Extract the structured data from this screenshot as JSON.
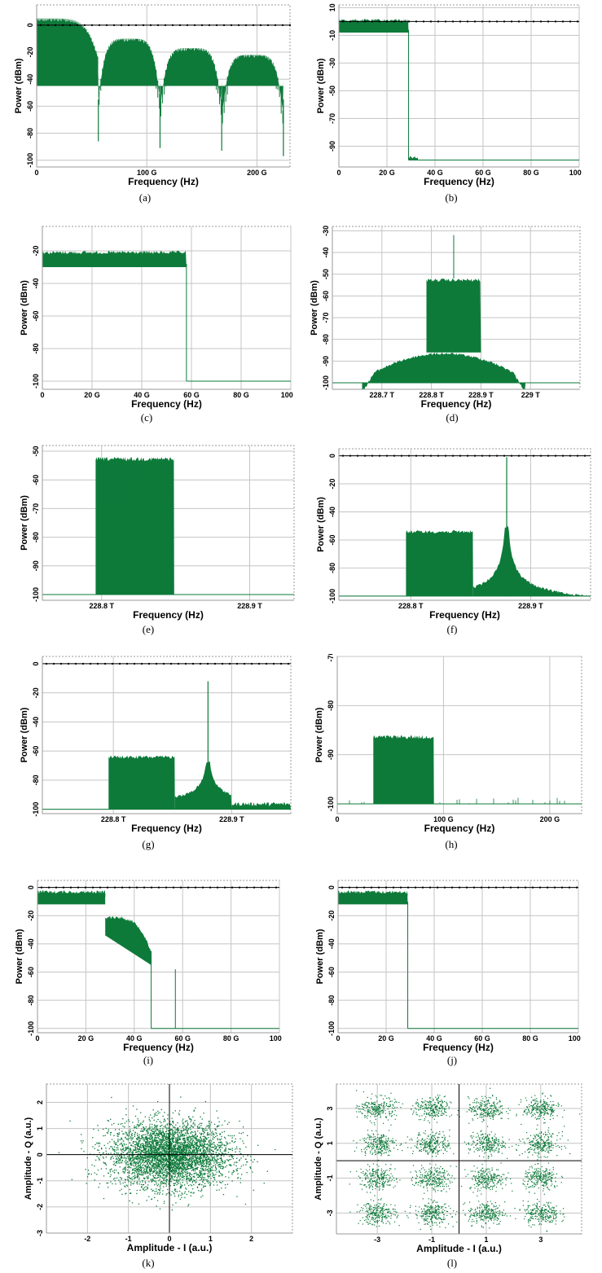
{
  "colors": {
    "trace": "#0e7a3a",
    "grid": "#c4c4c4",
    "axis": "#000000",
    "frame": "#9a9a9a"
  },
  "chart_data": [
    {
      "id": "a",
      "caption": "(a)",
      "type": "line",
      "shape": "nyquist_lobes",
      "xlabel": "Frequency (Hz)",
      "ylabel": "Power (dBm)",
      "xlim": [
        0,
        230
      ],
      "ylim": [
        -105,
        15
      ],
      "x_ticks": [
        {
          "v": 0,
          "t": "0"
        },
        {
          "v": 100,
          "t": "100 G"
        },
        {
          "v": 200,
          "t": "200 G"
        }
      ],
      "y_ticks": [
        {
          "v": 0,
          "t": "0"
        },
        {
          "v": -20,
          "t": "-20"
        },
        {
          "v": -40,
          "t": "-40"
        },
        {
          "v": -60,
          "t": "-60"
        },
        {
          "v": -80,
          "t": "-80"
        },
        {
          "v": -100,
          "t": "-100"
        }
      ],
      "reference_level": 0,
      "nulls_x": [
        56,
        112,
        168,
        224
      ],
      "null_depths": [
        -86,
        -91,
        -93,
        -97
      ],
      "lobe_peaks": [
        5,
        -10,
        -17,
        -22
      ]
    },
    {
      "id": "b",
      "caption": "(b)",
      "type": "line",
      "shape": "lowpass",
      "xlabel": "Frequency (Hz)",
      "ylabel": "Power (dBm)",
      "xlim": [
        0,
        100
      ],
      "ylim": [
        -105,
        12
      ],
      "x_ticks": [
        {
          "v": 0,
          "t": "0"
        },
        {
          "v": 20,
          "t": "20 G"
        },
        {
          "v": 40,
          "t": "40 G"
        },
        {
          "v": 60,
          "t": "60 G"
        },
        {
          "v": 80,
          "t": "80 G"
        },
        {
          "v": 100,
          "t": "100 G"
        }
      ],
      "y_ticks": [
        {
          "v": 10,
          "t": "10"
        },
        {
          "v": -10,
          "t": "-10"
        },
        {
          "v": -30,
          "t": "-30"
        },
        {
          "v": -50,
          "t": "-50"
        },
        {
          "v": -70,
          "t": "-70"
        },
        {
          "v": -90,
          "t": "-90"
        }
      ],
      "reference_level": 0,
      "cutoff": 29,
      "passband_level": 2,
      "floor_level": -100,
      "noise_tail": [
        29,
        33,
        -97
      ]
    },
    {
      "id": "c",
      "caption": "(c)",
      "type": "line",
      "shape": "lowpass",
      "xlabel": "Frequency (Hz)",
      "ylabel": "Power (dBm)",
      "xlim": [
        0,
        100
      ],
      "ylim": [
        -105,
        -5
      ],
      "x_ticks": [
        {
          "v": 0,
          "t": "0"
        },
        {
          "v": 20,
          "t": "20 G"
        },
        {
          "v": 40,
          "t": "40 G"
        },
        {
          "v": 60,
          "t": "60 G"
        },
        {
          "v": 80,
          "t": "80 G"
        },
        {
          "v": 100,
          "t": "100 G"
        }
      ],
      "y_ticks": [
        {
          "v": -20,
          "t": "-20"
        },
        {
          "v": -40,
          "t": "-40"
        },
        {
          "v": -60,
          "t": "-60"
        },
        {
          "v": -80,
          "t": "-80"
        },
        {
          "v": -100,
          "t": "-100"
        }
      ],
      "cutoff": 58,
      "passband_level": -20,
      "floor_level": -100
    },
    {
      "id": "d",
      "caption": "(d)",
      "type": "line",
      "shape": "dual_band",
      "xlabel": "Frequency (Hz)",
      "ylabel": "Power (dBm)",
      "xlim": [
        228.6,
        229.1
      ],
      "ylim": [
        -103,
        -28
      ],
      "x_ticks": [
        {
          "v": 228.7,
          "t": "228.7 T"
        },
        {
          "v": 228.8,
          "t": "228.8 T"
        },
        {
          "v": 228.9,
          "t": "228.9 T"
        },
        {
          "v": 229.0,
          "t": "229 T"
        }
      ],
      "y_ticks": [
        {
          "v": -30,
          "t": "-30"
        },
        {
          "v": -40,
          "t": "-40"
        },
        {
          "v": -50,
          "t": "-50"
        },
        {
          "v": -60,
          "t": "-60"
        },
        {
          "v": -70,
          "t": "-70"
        },
        {
          "v": -80,
          "t": "-80"
        },
        {
          "v": -90,
          "t": "-90"
        },
        {
          "v": -100,
          "t": "-100"
        }
      ],
      "floor_level": -100,
      "band": [
        228.79,
        228.9
      ],
      "band_top": -52,
      "pedestal": [
        228.66,
        228.99
      ],
      "pedestal_top": -86,
      "spike_x": 228.845,
      "spike_top": -32
    },
    {
      "id": "e",
      "caption": "(e)",
      "type": "line",
      "shape": "band",
      "xlabel": "Frequency (Hz)",
      "ylabel": "Power (dBm)",
      "xlim": [
        228.76,
        228.93
      ],
      "ylim": [
        -102,
        -48
      ],
      "x_ticks": [
        {
          "v": 228.8,
          "t": "228.8 T"
        },
        {
          "v": 228.9,
          "t": "228.9 T"
        }
      ],
      "y_ticks": [
        {
          "v": -50,
          "t": "-50"
        },
        {
          "v": -60,
          "t": "-60"
        },
        {
          "v": -70,
          "t": "-70"
        },
        {
          "v": -80,
          "t": "-80"
        },
        {
          "v": -90,
          "t": "-90"
        },
        {
          "v": -100,
          "t": "-100"
        }
      ],
      "floor_level": -100,
      "band": [
        228.796,
        228.849
      ],
      "band_top": -52
    },
    {
      "id": "f",
      "caption": "(f)",
      "type": "line",
      "shape": "band_carrier",
      "xlabel": "Frequency (Hz)",
      "ylabel": "Power (dBm)",
      "xlim": [
        228.74,
        228.95
      ],
      "ylim": [
        -103,
        5
      ],
      "x_ticks": [
        {
          "v": 228.8,
          "t": "228.8 T"
        },
        {
          "v": 228.9,
          "t": "228.9 T"
        }
      ],
      "y_ticks": [
        {
          "v": 0,
          "t": "0"
        },
        {
          "v": -20,
          "t": "-20"
        },
        {
          "v": -40,
          "t": "-40"
        },
        {
          "v": -60,
          "t": "-60"
        },
        {
          "v": -80,
          "t": "-80"
        },
        {
          "v": -100,
          "t": "-100"
        }
      ],
      "reference_level": 0,
      "floor_level": -100,
      "band": [
        228.796,
        228.852
      ],
      "band_top": -53,
      "carrier_x": 228.88,
      "carrier_top": -1,
      "carrier_skirt_end": 228.95
    },
    {
      "id": "g",
      "caption": "(g)",
      "type": "line",
      "shape": "band_carrier",
      "xlabel": "Frequency (Hz)",
      "ylabel": "Power (dBm)",
      "xlim": [
        228.74,
        228.95
      ],
      "ylim": [
        -103,
        5
      ],
      "x_ticks": [
        {
          "v": 228.8,
          "t": "228.8 T"
        },
        {
          "v": 228.9,
          "t": "228.9 T"
        }
      ],
      "y_ticks": [
        {
          "v": 0,
          "t": "0"
        },
        {
          "v": -20,
          "t": "-20"
        },
        {
          "v": -40,
          "t": "-40"
        },
        {
          "v": -60,
          "t": "-60"
        },
        {
          "v": -80,
          "t": "-80"
        },
        {
          "v": -100,
          "t": "-100"
        }
      ],
      "reference_level": 0,
      "floor_level": -100,
      "band": [
        228.796,
        228.852
      ],
      "band_top": -63,
      "carrier_x": 228.88,
      "carrier_top": -12,
      "carrier_skirt_end": 228.9
    },
    {
      "id": "h",
      "caption": "(h)",
      "type": "line",
      "shape": "band",
      "xlabel": "Frequency (Hz)",
      "ylabel": "Power (dBm)",
      "xlim": [
        0,
        230
      ],
      "ylim": [
        -102,
        -70
      ],
      "x_ticks": [
        {
          "v": 0,
          "t": "0"
        },
        {
          "v": 100,
          "t": "100 G"
        },
        {
          "v": 200,
          "t": "200 G"
        }
      ],
      "y_ticks": [
        {
          "v": -70,
          "t": "-70"
        },
        {
          "v": -80,
          "t": "-80"
        },
        {
          "v": -90,
          "t": "-90"
        },
        {
          "v": -100,
          "t": "-100"
        }
      ],
      "floor_level": -100,
      "band": [
        34,
        91
      ],
      "band_top": -86
    },
    {
      "id": "i",
      "caption": "(i)",
      "type": "line",
      "shape": "two_step",
      "xlabel": "Frequency (Hz)",
      "ylabel": "Power (dBm)",
      "xlim": [
        0,
        100
      ],
      "ylim": [
        -103,
        5
      ],
      "x_ticks": [
        {
          "v": 0,
          "t": "0"
        },
        {
          "v": 20,
          "t": "20 G"
        },
        {
          "v": 40,
          "t": "40 G"
        },
        {
          "v": 60,
          "t": "60 G"
        },
        {
          "v": 80,
          "t": "80 G"
        },
        {
          "v": 100,
          "t": "100 G"
        }
      ],
      "y_ticks": [
        {
          "v": 0,
          "t": "0"
        },
        {
          "v": -20,
          "t": "-20"
        },
        {
          "v": -40,
          "t": "-40"
        },
        {
          "v": -60,
          "t": "-60"
        },
        {
          "v": -80,
          "t": "-80"
        },
        {
          "v": -100,
          "t": "-100"
        }
      ],
      "reference_level": 0,
      "floor_level": -100,
      "step1": [
        0,
        28,
        -2
      ],
      "step2": [
        28,
        47,
        -20
      ],
      "spike_x": 57,
      "spike_top": -58
    },
    {
      "id": "j",
      "caption": "(j)",
      "type": "line",
      "shape": "lowpass",
      "xlabel": "Frequency (Hz)",
      "ylabel": "Power (dBm)",
      "xlim": [
        0,
        100
      ],
      "ylim": [
        -103,
        5
      ],
      "x_ticks": [
        {
          "v": 0,
          "t": "0"
        },
        {
          "v": 20,
          "t": "20 G"
        },
        {
          "v": 40,
          "t": "40 G"
        },
        {
          "v": 60,
          "t": "60 G"
        },
        {
          "v": 80,
          "t": "80 G"
        },
        {
          "v": 100,
          "t": "100 G"
        }
      ],
      "y_ticks": [
        {
          "v": 0,
          "t": "0"
        },
        {
          "v": -20,
          "t": "-20"
        },
        {
          "v": -40,
          "t": "-40"
        },
        {
          "v": -60,
          "t": "-60"
        },
        {
          "v": -80,
          "t": "-80"
        },
        {
          "v": -100,
          "t": "-100"
        }
      ],
      "reference_level": 0,
      "cutoff": 29,
      "passband_level": -2,
      "floor_level": -100
    },
    {
      "id": "k",
      "caption": "(k)",
      "type": "scatter",
      "shape": "gaussian_cloud",
      "xlabel": "Amplitude - I (a.u.)",
      "ylabel": "Amplitude - Q (a.u.)",
      "xlim": [
        -3,
        3
      ],
      "ylim": [
        -3,
        2.7
      ],
      "x_ticks": [
        {
          "v": -2,
          "t": "-2"
        },
        {
          "v": -1,
          "t": "-1"
        },
        {
          "v": 0,
          "t": "0"
        },
        {
          "v": 1,
          "t": "1"
        },
        {
          "v": 2,
          "t": "2"
        }
      ],
      "y_ticks": [
        {
          "v": 2,
          "t": "2"
        },
        {
          "v": 1,
          "t": "1"
        },
        {
          "v": 0,
          "t": "0"
        },
        {
          "v": -1,
          "t": "-1"
        },
        {
          "v": -2,
          "t": "-2"
        },
        {
          "v": -3,
          "t": "-3"
        }
      ],
      "center": [
        0,
        0
      ],
      "spread": [
        0.72,
        0.62
      ]
    },
    {
      "id": "l",
      "caption": "(l)",
      "type": "scatter",
      "shape": "qam16",
      "xlabel": "Amplitude - I (a.u.)",
      "ylabel": "Amplitude - Q (a.u.)",
      "xlim": [
        -4.5,
        4.5
      ],
      "ylim": [
        -4.2,
        4.4
      ],
      "x_ticks": [
        {
          "v": -3,
          "t": "-3"
        },
        {
          "v": -1,
          "t": "-1"
        },
        {
          "v": 1,
          "t": "1"
        },
        {
          "v": 3,
          "t": "3"
        }
      ],
      "y_ticks": [
        {
          "v": 3,
          "t": "3"
        },
        {
          "v": 1,
          "t": "1"
        },
        {
          "v": -1,
          "t": "-1"
        },
        {
          "v": -3,
          "t": "-3"
        }
      ],
      "levels": [
        -3,
        -1,
        1,
        3
      ],
      "spread": 0.33
    }
  ]
}
